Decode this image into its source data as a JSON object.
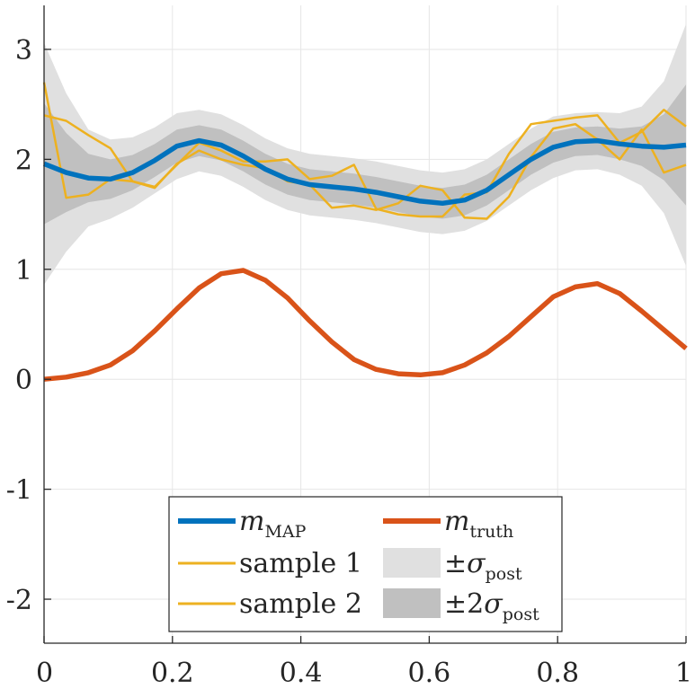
{
  "chart_data": {
    "type": "line",
    "title": "",
    "xlabel": "",
    "ylabel": "",
    "xlim": [
      0,
      1
    ],
    "ylim": [
      -2.4,
      3.4
    ],
    "grid": true,
    "x_ticks": [
      "0",
      "0.2",
      "0.4",
      "0.6",
      "0.8",
      "1"
    ],
    "x_tick_values": [
      0,
      0.2,
      0.4,
      0.6,
      0.8,
      1
    ],
    "y_ticks": [
      "3",
      "2",
      "1",
      "0",
      "-1",
      "-2"
    ],
    "y_tick_values": [
      3,
      2,
      1,
      0,
      -1,
      -2
    ],
    "legend_position": "bottom-center",
    "colors": {
      "map": "#0072BD",
      "truth": "#D95319",
      "sample": "#EDB120",
      "band1": "#e0e0e0",
      "band2": "#c0c0c0",
      "grid": "#e6e6e6",
      "axis": "#262626"
    },
    "x": [
      0,
      0.0345,
      0.069,
      0.1034,
      0.1379,
      0.1724,
      0.2069,
      0.2414,
      0.2759,
      0.3103,
      0.3448,
      0.3793,
      0.4138,
      0.4483,
      0.4828,
      0.5172,
      0.5517,
      0.5862,
      0.6207,
      0.6552,
      0.6897,
      0.7241,
      0.7586,
      0.7931,
      0.8276,
      0.8621,
      0.8966,
      0.931,
      0.9655,
      1.0
    ],
    "series": [
      {
        "key": "map",
        "label_main": "m",
        "label_sub": "MAP",
        "values": [
          1.96,
          1.88,
          1.83,
          1.82,
          1.88,
          1.99,
          2.12,
          2.17,
          2.13,
          2.03,
          1.91,
          1.82,
          1.77,
          1.75,
          1.73,
          1.7,
          1.66,
          1.62,
          1.6,
          1.63,
          1.72,
          1.86,
          2.0,
          2.11,
          2.16,
          2.17,
          2.14,
          2.12,
          2.11,
          2.13
        ]
      },
      {
        "key": "truth",
        "label_main": "m",
        "label_sub": "truth",
        "values": [
          0.0,
          0.02,
          0.06,
          0.13,
          0.26,
          0.44,
          0.64,
          0.83,
          0.96,
          0.99,
          0.9,
          0.74,
          0.53,
          0.34,
          0.18,
          0.09,
          0.05,
          0.04,
          0.06,
          0.13,
          0.24,
          0.39,
          0.57,
          0.75,
          0.84,
          0.87,
          0.78,
          0.62,
          0.45,
          0.28
        ]
      },
      {
        "key": "sample1",
        "label": "sample 1",
        "values": [
          2.7,
          1.65,
          1.68,
          1.82,
          1.8,
          1.75,
          1.95,
          2.15,
          2.08,
          1.98,
          1.98,
          2.0,
          1.82,
          1.85,
          1.95,
          1.55,
          1.5,
          1.48,
          1.48,
          1.68,
          1.7,
          2.05,
          2.32,
          2.35,
          2.38,
          2.4,
          2.15,
          2.25,
          2.45,
          2.3
        ]
      },
      {
        "key": "sample2",
        "label": "sample 2",
        "values": [
          2.4,
          2.35,
          2.22,
          2.1,
          1.8,
          1.74,
          1.96,
          2.08,
          2.0,
          1.95,
          1.92,
          1.8,
          1.77,
          1.56,
          1.58,
          1.54,
          1.6,
          1.76,
          1.72,
          1.47,
          1.46,
          1.66,
          2.02,
          2.28,
          2.32,
          2.18,
          2.0,
          2.27,
          1.88,
          1.95
        ]
      }
    ],
    "sigma": [
      0.55,
      0.36,
      0.22,
      0.18,
      0.16,
      0.15,
      0.15,
      0.14,
      0.14,
      0.14,
      0.14,
      0.14,
      0.14,
      0.14,
      0.14,
      0.14,
      0.14,
      0.14,
      0.14,
      0.14,
      0.14,
      0.14,
      0.14,
      0.14,
      0.13,
      0.13,
      0.14,
      0.18,
      0.3,
      0.55
    ],
    "bands": [
      {
        "key": "band1",
        "label_prefix": "±",
        "label_main": "σ",
        "label_sub": "post"
      },
      {
        "key": "band2",
        "label_prefix": "±2",
        "label_main": "σ",
        "label_sub": "post"
      }
    ]
  }
}
